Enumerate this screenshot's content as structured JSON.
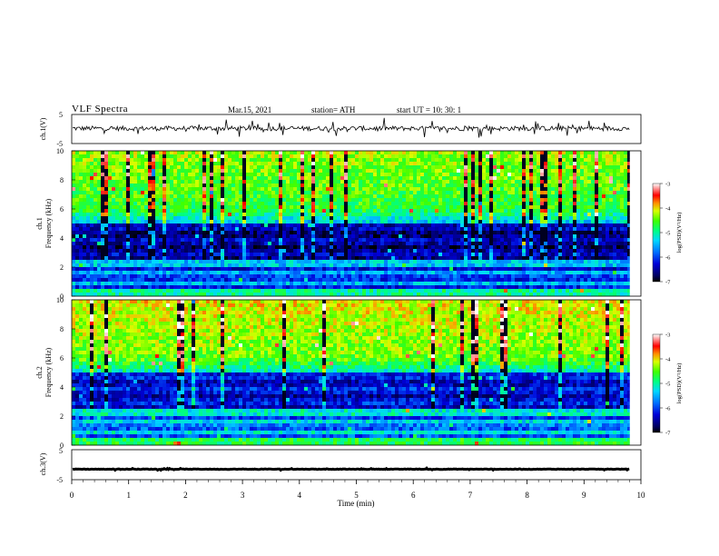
{
  "header": {
    "title": "VLF  Spectra",
    "date": "Mar.15, 2021",
    "station": "station= ATH",
    "start_ut": "start  UT  =    10: 30: 1"
  },
  "chart_data": {
    "type": "heatmap",
    "x_axis": {
      "label": "Time  (min)",
      "range": [
        0,
        10
      ],
      "ticks": [
        "0",
        "1",
        "2",
        "3",
        "4",
        "5",
        "6",
        "7",
        "8",
        "9",
        "10"
      ]
    },
    "panels": [
      {
        "id": "ch1-waveform",
        "type": "line",
        "ylabel": "ch.1(V)",
        "ylim": [
          -5,
          5
        ],
        "yticks": [
          "5",
          "-5"
        ],
        "baseline_volts": 0.2,
        "data_end_min": 9.8
      },
      {
        "id": "ch1-spectrogram",
        "type": "heatmap",
        "channel_label": "ch.1",
        "ylabel": "Frequency  (kHz)",
        "ylim": [
          0,
          10
        ],
        "yticks": [
          "0",
          "2",
          "4",
          "6",
          "8",
          "10"
        ],
        "data_end_min": 9.8,
        "colorbar": {
          "label": "log(PSD)(V²/Hz)",
          "range": [
            -7,
            -3
          ],
          "ticks": [
            "-3",
            "-4",
            "-5",
            "-6",
            "-7"
          ]
        }
      },
      {
        "id": "ch2-spectrogram",
        "type": "heatmap",
        "channel_label": "ch.2",
        "ylabel": "Frequency  (kHz)",
        "ylim": [
          0,
          10
        ],
        "yticks": [
          "0",
          "2",
          "4",
          "6",
          "8",
          "10"
        ],
        "data_end_min": 9.8,
        "colorbar": {
          "label": "log(PSD)(V²/Hz)",
          "range": [
            -7,
            -3
          ],
          "ticks": [
            "-3",
            "-4",
            "-5",
            "-6",
            "-7"
          ]
        }
      },
      {
        "id": "ch3-waveform",
        "type": "line",
        "ylabel": "ch.3(V)",
        "ylim": [
          -5,
          5
        ],
        "yticks": [
          "5",
          "-5"
        ],
        "baseline_volts": -1.5,
        "data_end_min": 9.8
      }
    ]
  }
}
